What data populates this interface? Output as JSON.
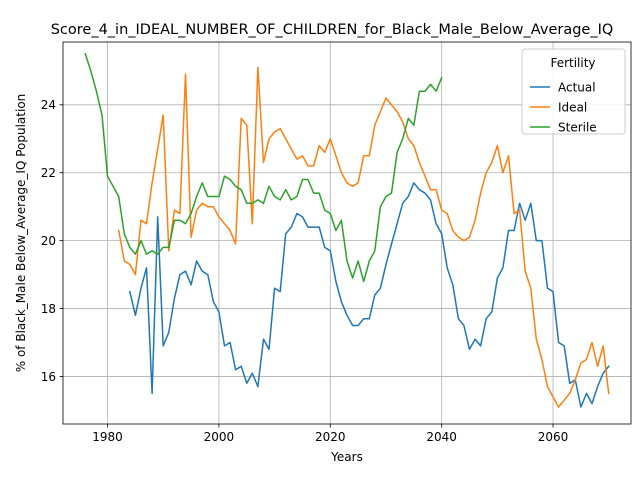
{
  "chart_data": {
    "type": "line",
    "title": "Score_4_in_IDEAL_NUMBER_OF_CHILDREN_for_Black_Male_Below_Average_IQ",
    "xlabel": "Years",
    "ylabel": "% of Black_Male Below_Average_IQ Population",
    "xlim": [
      1972,
      2074
    ],
    "ylim": [
      14.6,
      25.85
    ],
    "xticks": [
      1980,
      2000,
      2020,
      2040,
      2060
    ],
    "yticks": [
      16,
      18,
      20,
      22,
      24
    ],
    "grid": true,
    "legend": {
      "title": "Fertility",
      "placement": "top-right"
    },
    "series": [
      {
        "name": "Actual",
        "color": "#1f77b4",
        "x": [
          1984,
          1985,
          1986,
          1987,
          1988,
          1989,
          1990,
          1991,
          1992,
          1993,
          1994,
          1995,
          1996,
          1997,
          1998,
          1999,
          2000,
          2001,
          2002,
          2003,
          2004,
          2005,
          2006,
          2007,
          2008,
          2009,
          2010,
          2011,
          2012,
          2013,
          2014,
          2015,
          2016,
          2017,
          2018,
          2019,
          2020,
          2021,
          2022,
          2023,
          2024,
          2025,
          2026,
          2027,
          2028,
          2029,
          2030,
          2031,
          2032,
          2033,
          2034,
          2035,
          2036,
          2037,
          2038,
          2039,
          2040,
          2041,
          2042,
          2043,
          2044,
          2045,
          2046,
          2047,
          2048,
          2049,
          2050,
          2051,
          2052,
          2053,
          2054,
          2055,
          2056,
          2057,
          2058,
          2059,
          2060,
          2061,
          2062,
          2063,
          2064,
          2065,
          2066,
          2067,
          2068,
          2069,
          2070
        ],
        "y": [
          18.5,
          17.8,
          18.6,
          19.2,
          15.5,
          20.7,
          16.9,
          17.3,
          18.3,
          19.0,
          19.1,
          18.7,
          19.4,
          19.1,
          19.0,
          18.2,
          17.9,
          16.9,
          17.0,
          16.2,
          16.3,
          15.8,
          16.1,
          15.7,
          17.1,
          16.8,
          18.6,
          18.5,
          20.2,
          20.4,
          20.8,
          20.7,
          20.4,
          20.4,
          20.4,
          19.8,
          19.7,
          18.8,
          18.2,
          17.8,
          17.5,
          17.5,
          17.7,
          17.7,
          18.4,
          18.6,
          19.3,
          19.9,
          20.5,
          21.1,
          21.3,
          21.7,
          21.5,
          21.4,
          21.2,
          20.5,
          20.2,
          19.2,
          18.7,
          17.7,
          17.5,
          16.8,
          17.1,
          16.9,
          17.7,
          17.9,
          18.9,
          19.2,
          20.3,
          20.3,
          21.1,
          20.6,
          21.1,
          20.0,
          20.0,
          18.6,
          18.5,
          17.0,
          16.9,
          15.8,
          15.9,
          15.1,
          15.5,
          15.2,
          15.7,
          16.1,
          16.3
        ]
      },
      {
        "name": "Ideal",
        "color": "#ff7f0e",
        "x": [
          1982,
          1983,
          1984,
          1985,
          1986,
          1987,
          1988,
          1989,
          1990,
          1991,
          1992,
          1993,
          1994,
          1995,
          1996,
          1997,
          1998,
          1999,
          2000,
          2001,
          2002,
          2003,
          2004,
          2005,
          2006,
          2007,
          2008,
          2009,
          2010,
          2011,
          2012,
          2013,
          2014,
          2015,
          2016,
          2017,
          2018,
          2019,
          2020,
          2021,
          2022,
          2023,
          2024,
          2025,
          2026,
          2027,
          2028,
          2029,
          2030,
          2031,
          2032,
          2033,
          2034,
          2035,
          2036,
          2037,
          2038,
          2039,
          2040,
          2041,
          2042,
          2043,
          2044,
          2045,
          2046,
          2047,
          2048,
          2049,
          2050,
          2051,
          2052,
          2053,
          2054,
          2055,
          2056,
          2057,
          2058,
          2059,
          2060,
          2061,
          2062,
          2063,
          2064,
          2065,
          2066,
          2067,
          2068,
          2069,
          2070
        ],
        "y": [
          20.3,
          19.4,
          19.3,
          19.0,
          20.6,
          20.5,
          21.7,
          22.7,
          23.7,
          19.7,
          20.9,
          20.8,
          24.9,
          20.1,
          20.9,
          21.1,
          21.0,
          21.0,
          20.7,
          20.5,
          20.3,
          19.9,
          23.6,
          23.4,
          20.5,
          25.1,
          22.3,
          23.0,
          23.2,
          23.3,
          23.0,
          22.7,
          22.4,
          22.5,
          22.2,
          22.2,
          22.8,
          22.6,
          23.0,
          22.5,
          22.0,
          21.7,
          21.6,
          21.7,
          22.5,
          22.5,
          23.4,
          23.8,
          24.2,
          24.0,
          23.8,
          23.5,
          23.0,
          22.8,
          22.3,
          21.9,
          21.5,
          21.5,
          20.9,
          20.8,
          20.3,
          20.1,
          20.0,
          20.1,
          20.6,
          21.4,
          22.0,
          22.3,
          22.8,
          22.0,
          22.5,
          20.8,
          20.9,
          19.1,
          18.6,
          17.1,
          16.5,
          15.7,
          15.4,
          15.1,
          15.3,
          15.5,
          15.9,
          16.4,
          16.5,
          17.0,
          16.3,
          16.9,
          15.5
        ]
      },
      {
        "name": "Sterile",
        "color": "#2ca02c",
        "x": [
          1976,
          1977,
          1978,
          1979,
          1980,
          1981,
          1982,
          1983,
          1984,
          1985,
          1986,
          1987,
          1988,
          1989,
          1990,
          1991,
          1992,
          1993,
          1994,
          1995,
          1996,
          1997,
          1998,
          1999,
          2000,
          2001,
          2002,
          2003,
          2004,
          2005,
          2006,
          2007,
          2008,
          2009,
          2010,
          2011,
          2012,
          2013,
          2014,
          2015,
          2016,
          2017,
          2018,
          2019,
          2020,
          2021,
          2022,
          2023,
          2024,
          2025,
          2026,
          2027,
          2028,
          2029,
          2030,
          2031,
          2032,
          2033,
          2034,
          2035,
          2036,
          2037,
          2038,
          2039,
          2040
        ],
        "y": [
          25.5,
          25.0,
          24.4,
          23.7,
          21.9,
          21.6,
          21.3,
          20.2,
          19.8,
          19.6,
          20.0,
          19.6,
          19.7,
          19.6,
          19.8,
          19.8,
          20.6,
          20.6,
          20.5,
          20.8,
          21.3,
          21.7,
          21.3,
          21.3,
          21.3,
          21.9,
          21.8,
          21.6,
          21.5,
          21.1,
          21.1,
          21.2,
          21.1,
          21.6,
          21.3,
          21.2,
          21.5,
          21.2,
          21.3,
          21.8,
          21.8,
          21.4,
          21.4,
          20.9,
          20.8,
          20.3,
          20.6,
          19.4,
          18.9,
          19.4,
          18.8,
          19.4,
          19.7,
          21.0,
          21.3,
          21.4,
          22.6,
          23.0,
          23.6,
          23.4,
          24.4,
          24.4,
          24.6,
          24.4,
          24.8
        ]
      }
    ]
  }
}
